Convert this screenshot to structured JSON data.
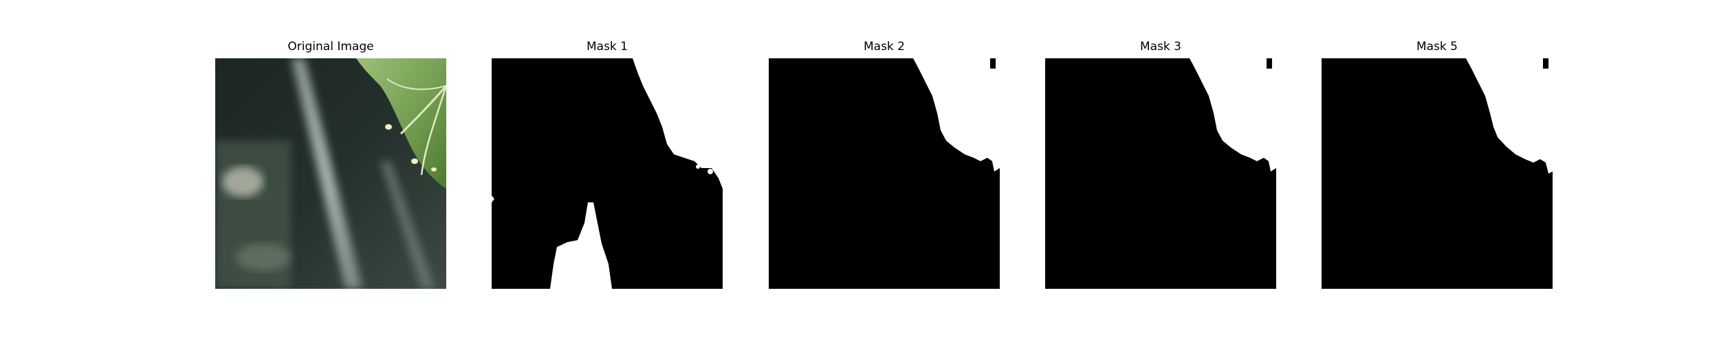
{
  "figure": {
    "panels": [
      {
        "title": "Original Image",
        "kind": "photo"
      },
      {
        "title": "Mask 1",
        "kind": "mask"
      },
      {
        "title": "Mask 2",
        "kind": "mask"
      },
      {
        "title": "Mask 3",
        "kind": "mask"
      },
      {
        "title": "Mask 5",
        "kind": "mask"
      }
    ]
  },
  "colors": {
    "mask_background": "#000000",
    "mask_foreground": "#ffffff",
    "leaf": "#7fa65a",
    "dark_background": "#1e2a25"
  }
}
